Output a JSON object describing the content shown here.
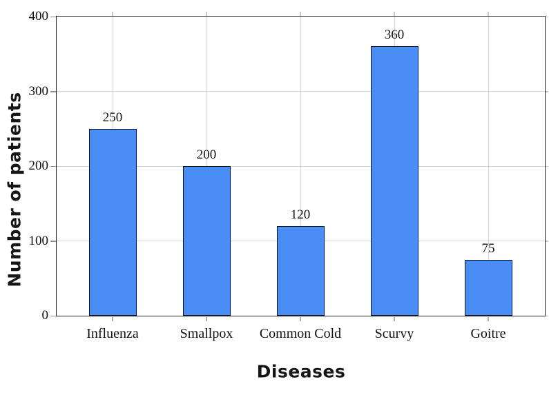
{
  "chart_data": {
    "type": "bar",
    "title": "",
    "xlabel": "Diseases",
    "ylabel": "Number of patients",
    "categories": [
      "Influenza",
      "Smallpox",
      "Common Cold",
      "Scurvy",
      "Goitre"
    ],
    "values": [
      250,
      200,
      120,
      360,
      75
    ],
    "bar_value_labels": [
      "250",
      "200",
      "120",
      "360",
      "75"
    ],
    "ylim": [
      0,
      400
    ],
    "yticks": [
      0,
      100,
      200,
      300,
      400
    ],
    "ytick_labels": [
      "0",
      "100",
      "200",
      "300",
      "400"
    ],
    "grid": "on",
    "legend": "none",
    "colors": {
      "bar_fill": "#4a8df5",
      "bar_edge": "#141414",
      "grid_line": "#d4d4d4",
      "axis_frame": "#222222",
      "tick_mark": "#8f8f8f",
      "text": "#111111",
      "background": "#ffffff"
    }
  }
}
